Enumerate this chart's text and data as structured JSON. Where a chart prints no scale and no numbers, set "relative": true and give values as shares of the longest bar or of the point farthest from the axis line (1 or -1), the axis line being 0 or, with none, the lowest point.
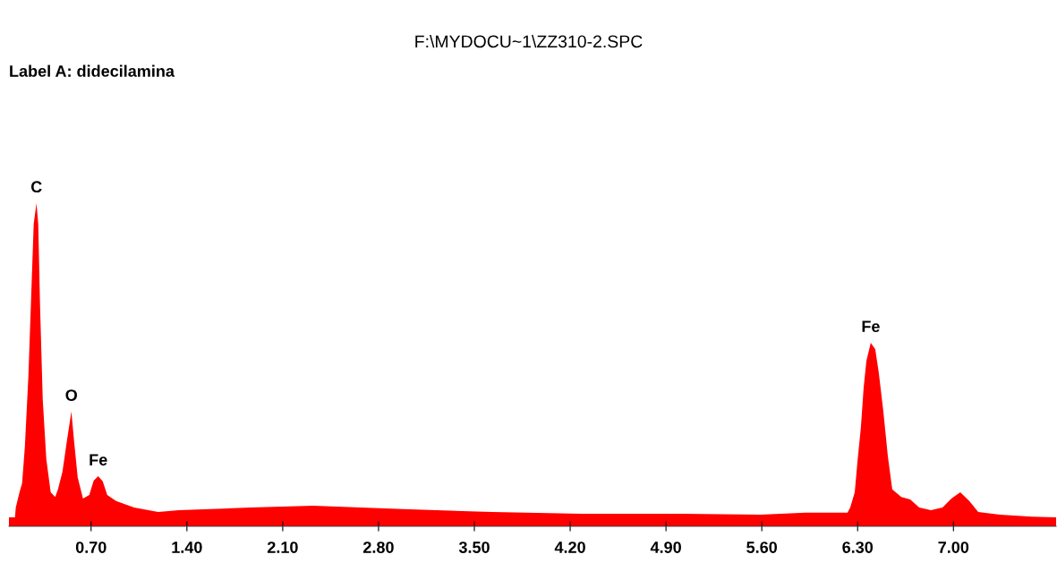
{
  "chart_data": {
    "type": "area",
    "title": "F:\\MYDOCU~1\\ZZ310-2.SPC",
    "subtitle": "Label A: didecilamina",
    "relative": true,
    "color": "#ff0000",
    "x": [
      0.1,
      0.144,
      0.15,
      0.177,
      0.196,
      0.216,
      0.242,
      0.262,
      0.281,
      0.301,
      0.314,
      0.327,
      0.347,
      0.373,
      0.405,
      0.438,
      0.458,
      0.491,
      0.523,
      0.556,
      0.576,
      0.602,
      0.641,
      0.687,
      0.719,
      0.752,
      0.785,
      0.818,
      0.883,
      1.014,
      1.19,
      1.341,
      1.864,
      2.322,
      2.976,
      3.63,
      4.284,
      4.938,
      5.592,
      5.919,
      6.226,
      6.246,
      6.279,
      6.298,
      6.324,
      6.344,
      6.364,
      6.396,
      6.429,
      6.455,
      6.488,
      6.521,
      6.553,
      6.619,
      6.684,
      6.75,
      6.835,
      6.92,
      6.985,
      7.05,
      7.116,
      7.181,
      7.338,
      7.574,
      7.75
    ],
    "values": [
      0.028,
      0.028,
      0.058,
      0.105,
      0.133,
      0.244,
      0.465,
      0.706,
      0.936,
      1,
      0.936,
      0.687,
      0.391,
      0.208,
      0.105,
      0.091,
      0.114,
      0.169,
      0.263,
      0.355,
      0.263,
      0.152,
      0.086,
      0.097,
      0.141,
      0.155,
      0.139,
      0.097,
      0.078,
      0.058,
      0.044,
      0.05,
      0.058,
      0.064,
      0.053,
      0.044,
      0.039,
      0.039,
      0.036,
      0.042,
      0.042,
      0.058,
      0.105,
      0.197,
      0.307,
      0.429,
      0.512,
      0.568,
      0.548,
      0.474,
      0.355,
      0.216,
      0.114,
      0.091,
      0.083,
      0.058,
      0.05,
      0.058,
      0.086,
      0.105,
      0.078,
      0.044,
      0.036,
      0.03,
      0.028
    ],
    "xlim": [
      0.1,
      7.75
    ],
    "xticks": [
      {
        "value": 0.7,
        "label": "0.70"
      },
      {
        "value": 1.4,
        "label": "1.40"
      },
      {
        "value": 2.1,
        "label": "2.10"
      },
      {
        "value": 2.8,
        "label": "2.80"
      },
      {
        "value": 3.5,
        "label": "3.50"
      },
      {
        "value": 4.2,
        "label": "4.20"
      },
      {
        "value": 4.9,
        "label": "4.90"
      },
      {
        "value": 5.6,
        "label": "5.60"
      },
      {
        "value": 6.3,
        "label": "6.30"
      },
      {
        "value": 7.0,
        "label": "7.00"
      }
    ],
    "tick_labels": "x",
    "grid": false,
    "legend": false,
    "annotations": [
      {
        "text": "C",
        "x": 0.301,
        "y": 1
      },
      {
        "text": "O",
        "x": 0.556,
        "y": 0.355
      },
      {
        "text": "Fe",
        "x": 0.752,
        "y": 0.155
      },
      {
        "text": "Fe",
        "x": 6.396,
        "y": 0.568
      }
    ]
  }
}
